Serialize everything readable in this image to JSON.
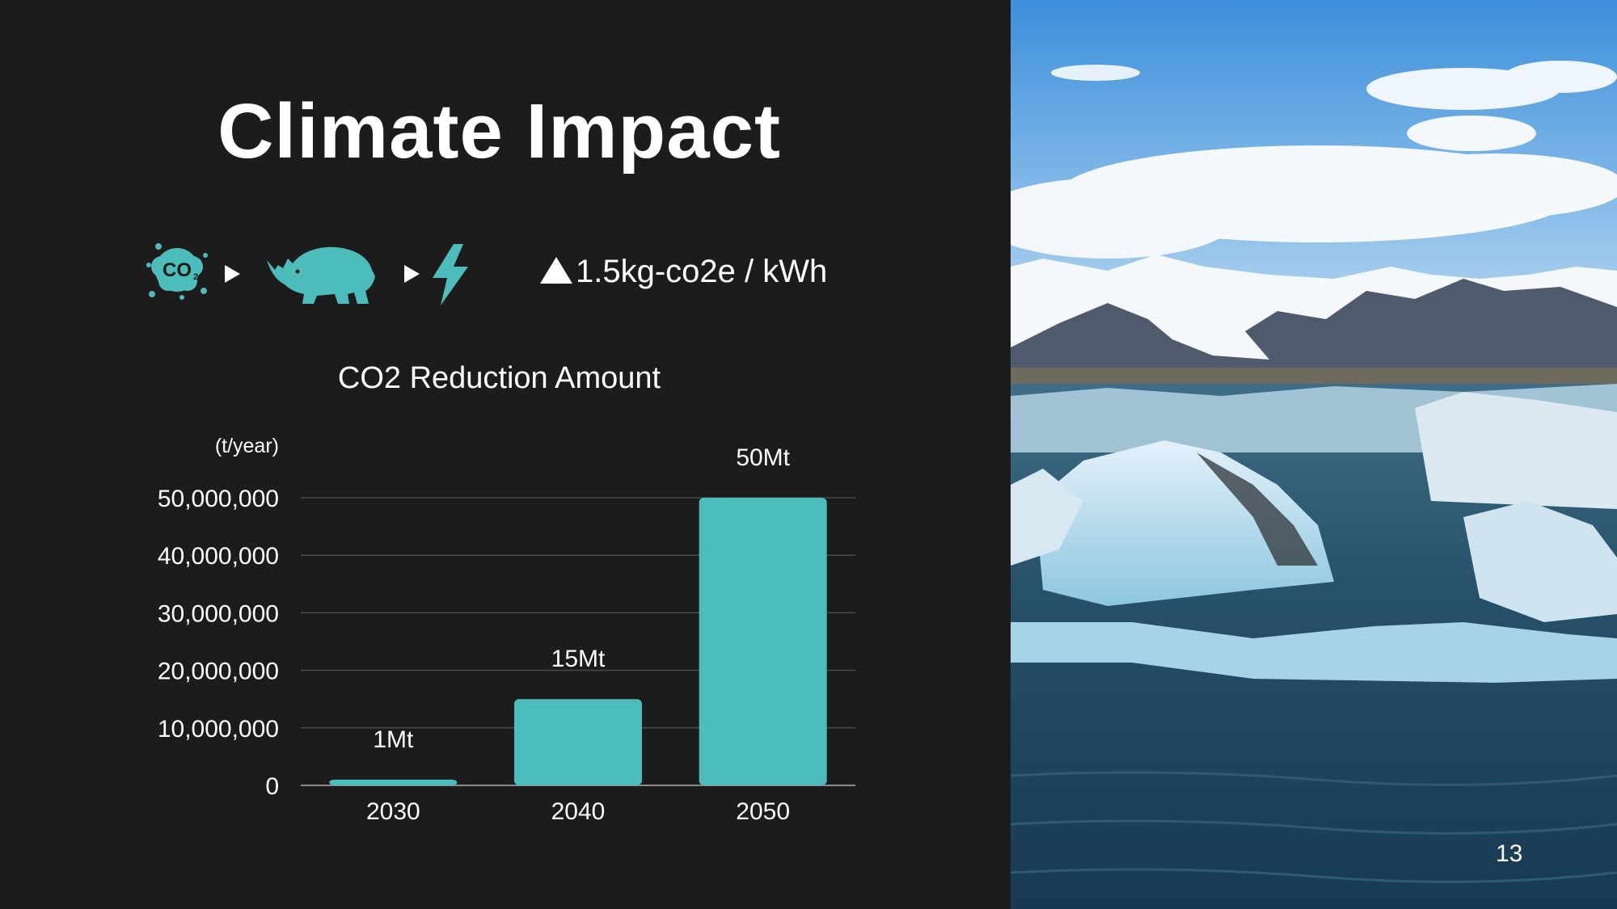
{
  "slide": {
    "title": "Climate Impact",
    "page_number": "13"
  },
  "process": {
    "icons": [
      "co2-cloud-icon",
      "rhino-icon",
      "lightning-bolt-icon"
    ],
    "emission_text": "1.5kg-co2e / kWh"
  },
  "colors": {
    "background": "#1c1c1c",
    "accent": "#4dbdbb",
    "text": "#ffffff",
    "gridline": "#4a4a4a"
  },
  "chart_data": {
    "type": "bar",
    "title": "CO2 Reduction Amount",
    "ylabel": "(t/year)",
    "categories": [
      "2030",
      "2040",
      "2050"
    ],
    "values": [
      1000000,
      15000000,
      50000000
    ],
    "data_labels": [
      "1Mt",
      "15Mt",
      "50Mt"
    ],
    "ylim": [
      0,
      50000000
    ],
    "yticks": [
      0,
      10000000,
      20000000,
      30000000,
      40000000,
      50000000
    ],
    "ytick_labels": [
      "0",
      "10,000,000",
      "20,000,000",
      "30,000,000",
      "40,000,000",
      "50,000,000"
    ],
    "grid": true,
    "color": "#4dbdbb"
  }
}
